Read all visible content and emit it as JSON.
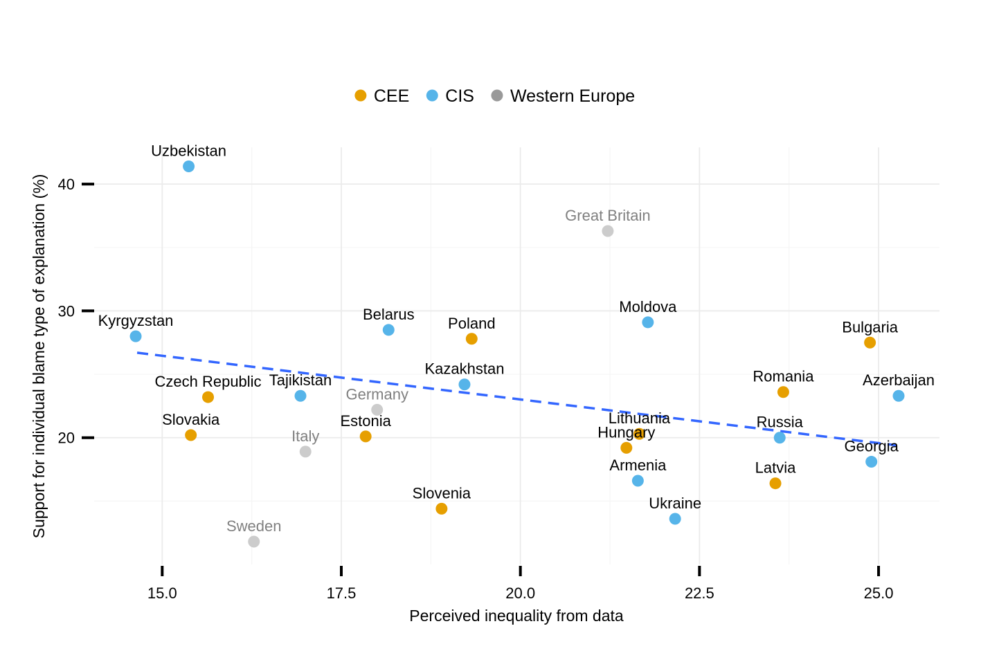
{
  "chart_data": {
    "type": "scatter",
    "xlabel": "Perceived inequality from data",
    "ylabel": "Support for individual blame type of explanation (%)",
    "xlim": [
      14.05,
      25.85
    ],
    "ylim": [
      10,
      42.9
    ],
    "x_ticks": [
      15,
      17.5,
      20,
      22.5,
      25
    ],
    "x_tick_labels": [
      "15.0",
      "17.5",
      "20.0",
      "22.5",
      "25.0"
    ],
    "y_ticks": [
      20,
      30,
      40
    ],
    "y_tick_labels": [
      "20",
      "30",
      "40"
    ],
    "grid": true,
    "legend_position": "top",
    "legend": [
      {
        "group": "CEE",
        "label": "CEE",
        "color": "#E69F00"
      },
      {
        "group": "CIS",
        "label": "CIS",
        "color": "#56B4E9"
      },
      {
        "group": "WE",
        "label": "Western Europe",
        "color": "#999999"
      }
    ],
    "label_colors": {
      "CEE": "#000000",
      "CIS": "#000000",
      "WE": "#808080"
    },
    "point_colors": {
      "CEE": "#E69F00",
      "CIS": "#56B4E9",
      "WE": "#CCCCCC"
    },
    "trend_line": {
      "x": [
        14.65,
        25.25
      ],
      "y": [
        26.7,
        19.4
      ],
      "color": "#3366FF",
      "style": "dashed"
    },
    "points": [
      {
        "label": "Uzbekistan",
        "x": 15.37,
        "y": 41.4,
        "group": "CIS"
      },
      {
        "label": "Great Britain",
        "x": 21.22,
        "y": 36.3,
        "group": "WE"
      },
      {
        "label": "Kyrgyzstan",
        "x": 14.63,
        "y": 28.0,
        "group": "CIS"
      },
      {
        "label": "Belarus",
        "x": 18.16,
        "y": 28.5,
        "group": "CIS"
      },
      {
        "label": "Poland",
        "x": 19.32,
        "y": 27.8,
        "group": "CEE"
      },
      {
        "label": "Moldova",
        "x": 21.78,
        "y": 29.1,
        "group": "CIS"
      },
      {
        "label": "Bulgaria",
        "x": 24.88,
        "y": 27.5,
        "group": "CEE"
      },
      {
        "label": "Kazakhstan",
        "x": 19.22,
        "y": 24.2,
        "group": "CIS"
      },
      {
        "label": "Czech Republic",
        "x": 15.64,
        "y": 23.2,
        "group": "CEE"
      },
      {
        "label": "Tajikistan",
        "x": 16.93,
        "y": 23.3,
        "group": "CIS"
      },
      {
        "label": "Germany",
        "x": 18.0,
        "y": 22.2,
        "group": "WE"
      },
      {
        "label": "Romania",
        "x": 23.67,
        "y": 23.6,
        "group": "CEE"
      },
      {
        "label": "Azerbaijan",
        "x": 25.28,
        "y": 23.3,
        "group": "CIS"
      },
      {
        "label": "Slovakia",
        "x": 15.4,
        "y": 20.2,
        "group": "CEE"
      },
      {
        "label": "Estonia",
        "x": 17.84,
        "y": 20.1,
        "group": "CEE"
      },
      {
        "label": "Italy",
        "x": 17.0,
        "y": 18.9,
        "group": "WE"
      },
      {
        "label": "Lithuania",
        "x": 21.66,
        "y": 20.3,
        "group": "CEE"
      },
      {
        "label": "Hungary",
        "x": 21.48,
        "y": 19.2,
        "group": "CEE"
      },
      {
        "label": "Russia",
        "x": 23.62,
        "y": 20.0,
        "group": "CIS"
      },
      {
        "label": "Georgia",
        "x": 24.9,
        "y": 18.1,
        "group": "CIS"
      },
      {
        "label": "Armenia",
        "x": 21.64,
        "y": 16.6,
        "group": "CIS"
      },
      {
        "label": "Latvia",
        "x": 23.56,
        "y": 16.4,
        "group": "CEE"
      },
      {
        "label": "Slovenia",
        "x": 18.9,
        "y": 14.4,
        "group": "CEE"
      },
      {
        "label": "Ukraine",
        "x": 22.16,
        "y": 13.6,
        "group": "CIS"
      },
      {
        "label": "Sweden",
        "x": 16.28,
        "y": 11.8,
        "group": "WE"
      }
    ]
  }
}
